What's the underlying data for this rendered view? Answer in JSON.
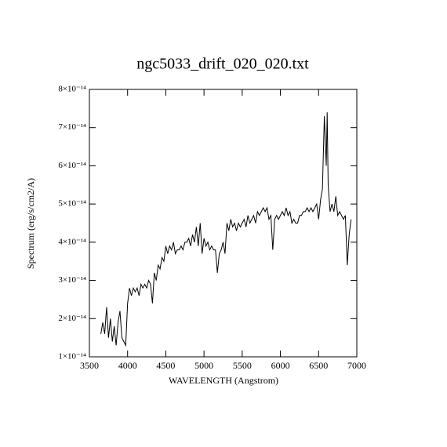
{
  "chart_data": {
    "type": "line",
    "title": "ngc5033_drift_020_020.txt",
    "x_label": "WAVELENGTH (Angstrom)",
    "y_label": "Spectrum (erg/s/cm2/A)",
    "color": "#000000",
    "xlim": [
      3500,
      7000
    ],
    "xticks": [
      3500,
      4000,
      4500,
      5000,
      5500,
      6000,
      6500,
      7000
    ],
    "ylim": [
      1e-14,
      8e-14
    ],
    "yticks": [
      {
        "value": 1e-14,
        "label": "1×10⁻¹⁴"
      },
      {
        "value": 2e-14,
        "label": "2×10⁻¹⁴"
      },
      {
        "value": 3e-14,
        "label": "3×10⁻¹⁴"
      },
      {
        "value": 4e-14,
        "label": "4×10⁻¹⁴"
      },
      {
        "value": 5e-14,
        "label": "5×10⁻¹⁴"
      },
      {
        "value": 6e-14,
        "label": "6×10⁻¹⁴"
      },
      {
        "value": 7e-14,
        "label": "7×10⁻¹⁴"
      },
      {
        "value": 8e-14,
        "label": "8×10⁻¹⁴"
      }
    ],
    "x": [
      3650,
      3675,
      3700,
      3725,
      3750,
      3775,
      3800,
      3825,
      3850,
      3875,
      3900,
      3925,
      3950,
      3975,
      4000,
      4025,
      4050,
      4075,
      4100,
      4125,
      4150,
      4175,
      4200,
      4225,
      4250,
      4275,
      4300,
      4325,
      4350,
      4375,
      4400,
      4425,
      4450,
      4475,
      4500,
      4525,
      4550,
      4575,
      4600,
      4625,
      4650,
      4675,
      4700,
      4725,
      4750,
      4775,
      4800,
      4825,
      4850,
      4875,
      4900,
      4925,
      4950,
      4975,
      5000,
      5025,
      5050,
      5075,
      5100,
      5125,
      5150,
      5175,
      5200,
      5225,
      5250,
      5275,
      5300,
      5325,
      5350,
      5375,
      5400,
      5425,
      5450,
      5475,
      5500,
      5525,
      5550,
      5575,
      5600,
      5625,
      5650,
      5675,
      5700,
      5725,
      5750,
      5775,
      5800,
      5825,
      5850,
      5875,
      5900,
      5925,
      5950,
      5975,
      6000,
      6025,
      6050,
      6075,
      6100,
      6125,
      6150,
      6175,
      6200,
      6225,
      6250,
      6275,
      6300,
      6325,
      6350,
      6375,
      6400,
      6425,
      6450,
      6475,
      6500,
      6525,
      6550,
      6575,
      6600,
      6612,
      6625,
      6650,
      6675,
      6700,
      6725,
      6750,
      6775,
      6800,
      6825,
      6850,
      6875,
      6900,
      6925
    ],
    "values": [
      1.6e-14,
      1.9e-14,
      1.6e-14,
      2.3e-14,
      1.5e-14,
      2e-14,
      1.4e-14,
      1.8e-14,
      1.3e-14,
      1.9e-14,
      2.2e-14,
      1.5e-14,
      1.4e-14,
      1.3e-14,
      2.4e-14,
      2.8e-14,
      2.6e-14,
      2.8e-14,
      2.7e-14,
      2.8e-14,
      2.6e-14,
      2.9e-14,
      2.8e-14,
      2.9e-14,
      2.8e-14,
      3e-14,
      2.9e-14,
      2.4e-14,
      3.2e-14,
      3e-14,
      3.4e-14,
      3.3e-14,
      3.6e-14,
      3.5e-14,
      3.9e-14,
      3.7e-14,
      3.9e-14,
      3.8e-14,
      4e-14,
      3.7e-14,
      3.8e-14,
      3.8e-14,
      3.9e-14,
      3.8e-14,
      4e-14,
      4e-14,
      4.1e-14,
      3.9e-14,
      4.2e-14,
      4e-14,
      4.4e-14,
      3.9e-14,
      4.5e-14,
      3.7e-14,
      4.1e-14,
      3.9e-14,
      4e-14,
      3.8e-14,
      3.9e-14,
      3.8e-14,
      3.8e-14,
      3.2e-14,
      3.7e-14,
      3.8e-14,
      4e-14,
      3.7e-14,
      4.5e-14,
      4.3e-14,
      4.6e-14,
      4.4e-14,
      4.5e-14,
      4.3e-14,
      4.5e-14,
      4.4e-14,
      4.5e-14,
      4.6e-14,
      4.4e-14,
      4.7e-14,
      4.5e-14,
      4.6e-14,
      4.7e-14,
      4.5e-14,
      4.8e-14,
      4.7e-14,
      4.8e-14,
      4.9e-14,
      4.8e-14,
      4.9e-14,
      4.6e-14,
      4.7e-14,
      3.8e-14,
      4.6e-14,
      4.7e-14,
      4.6e-14,
      4.7e-14,
      4.8e-14,
      4.7e-14,
      4.9e-14,
      4.7e-14,
      4.8e-14,
      4.5e-14,
      4.6e-14,
      4.5e-14,
      4.5e-14,
      4.7e-14,
      4.7e-14,
      4.8e-14,
      4.8e-14,
      4.9e-14,
      4.8e-14,
      4.9e-14,
      4.8e-14,
      4.9e-14,
      5e-14,
      4.6e-14,
      5.1e-14,
      5.4e-14,
      7.3e-14,
      6e-14,
      7.4e-14,
      5.5e-14,
      4.8e-14,
      5e-14,
      4.8e-14,
      5.2e-14,
      4.7e-14,
      4.8e-14,
      4.7e-14,
      4.6e-14,
      4.7e-14,
      3.4e-14,
      4.2e-14,
      4.6e-14
    ]
  }
}
